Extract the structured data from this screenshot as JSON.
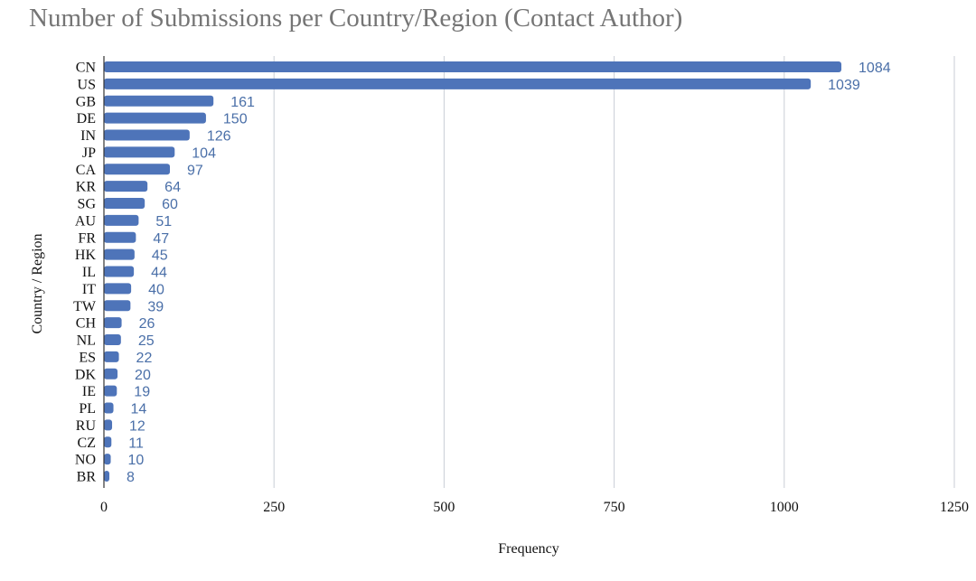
{
  "chart_data": {
    "type": "bar",
    "orientation": "horizontal",
    "title": "Number of Submissions per Country/Region (Contact Author)",
    "xlabel": "Frequency",
    "ylabel": "Country / Region",
    "xlim": [
      0,
      1250
    ],
    "xticks": [
      "0",
      "250",
      "500",
      "750",
      "1000",
      "1250"
    ],
    "grid": "vertical",
    "bar_color": "#4e74b9",
    "label_color": "#4a6fa8",
    "categories": [
      "CN",
      "US",
      "GB",
      "DE",
      "IN",
      "JP",
      "CA",
      "KR",
      "SG",
      "AU",
      "FR",
      "HK",
      "IL",
      "IT",
      "TW",
      "CH",
      "NL",
      "ES",
      "DK",
      "IE",
      "PL",
      "RU",
      "CZ",
      "NO",
      "BR"
    ],
    "values": [
      1084,
      1039,
      161,
      150,
      126,
      104,
      97,
      64,
      60,
      51,
      47,
      45,
      44,
      40,
      39,
      26,
      25,
      22,
      20,
      19,
      14,
      12,
      11,
      10,
      8
    ]
  }
}
